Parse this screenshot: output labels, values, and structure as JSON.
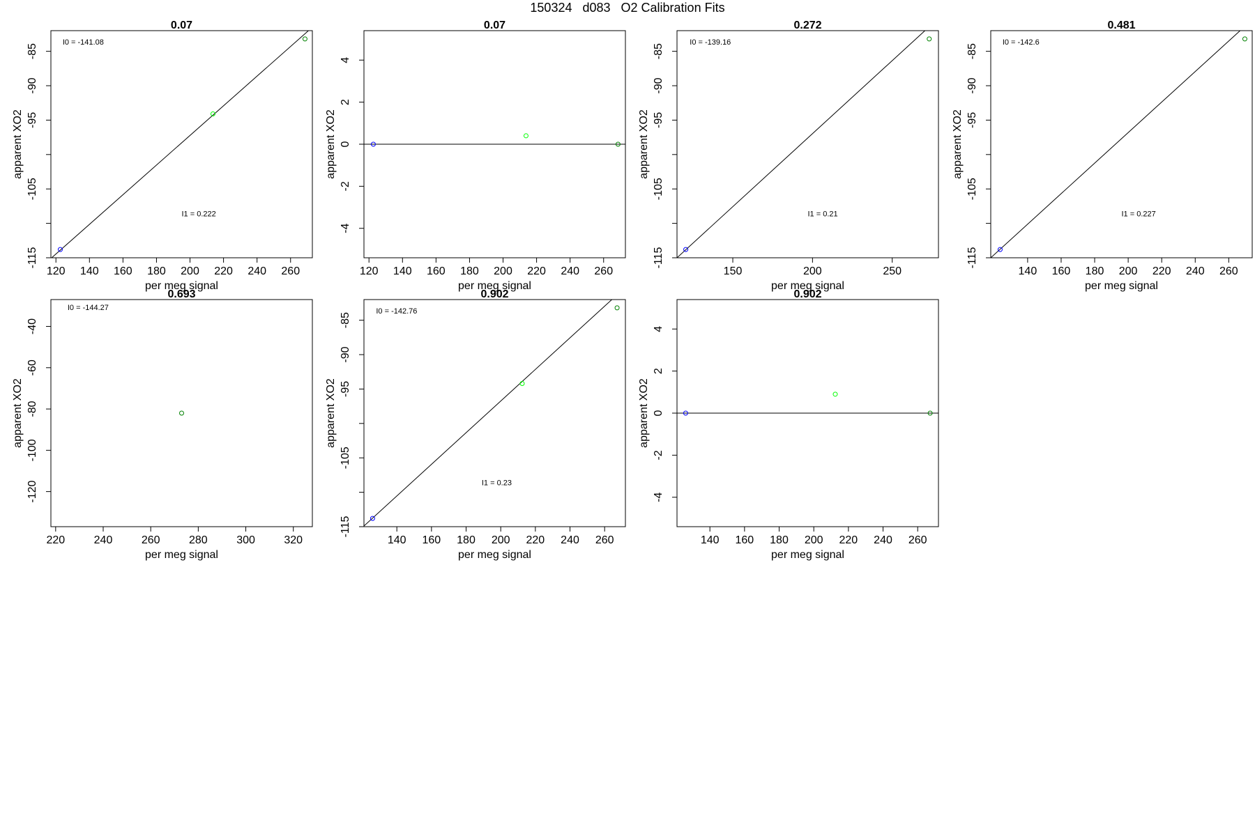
{
  "page_title": "150324   d083   O2 Calibration Fits",
  "colors": {
    "low_std": "#0000ff",
    "mid_std": "#00ff00",
    "high_std": "#008000",
    "fit_line": "#000000"
  },
  "chart_data": [
    {
      "type": "scatter",
      "title": "0.07",
      "xlabel": "per meg signal",
      "ylabel": "apparent XO2",
      "xlim": [
        117,
        273
      ],
      "ylim": [
        -115,
        -82
      ],
      "xticks": [
        120,
        140,
        160,
        180,
        200,
        220,
        240,
        260
      ],
      "yticks": [
        -115,
        -110,
        -105,
        -100,
        -95,
        -90,
        -85
      ],
      "yticklabels": [
        "-115",
        "",
        "-105",
        "",
        "-95",
        "-90",
        "-85"
      ],
      "points": [
        {
          "x": 122.6,
          "y": -113.8,
          "color": "#0000ff"
        },
        {
          "x": 213.7,
          "y": -94.1,
          "color": "#00ff00"
        },
        {
          "x": 268.6,
          "y": -83.2,
          "color": "#008000"
        }
      ],
      "fit": {
        "type": "line",
        "x": [
          117,
          273
        ],
        "y": [
          -115.1,
          -81.5
        ]
      },
      "annotations": [
        {
          "text": "I0 =  -141.08",
          "x": 124,
          "y": -84.0
        },
        {
          "text": "I1 =  0.222",
          "x": 195,
          "y": -109.0
        }
      ]
    },
    {
      "type": "scatter",
      "title": "0.07",
      "xlabel": "per meg signal",
      "ylabel": "apparent XO2",
      "xlim": [
        117,
        273
      ],
      "ylim": [
        -5.4,
        5.4
      ],
      "xticks": [
        120,
        140,
        160,
        180,
        200,
        220,
        240,
        260
      ],
      "yticks": [
        -4,
        -2,
        0,
        2,
        4
      ],
      "yticklabels": [
        "-4",
        "-2",
        "0",
        "2",
        "4"
      ],
      "points": [
        {
          "x": 122.6,
          "y": 0,
          "color": "#0000ff"
        },
        {
          "x": 213.7,
          "y": 0.4,
          "color": "#00ff00"
        },
        {
          "x": 268.6,
          "y": 0,
          "color": "#008000"
        }
      ],
      "fit": {
        "type": "line",
        "x": [
          117,
          273
        ],
        "y": [
          0,
          0
        ]
      },
      "annotations": []
    },
    {
      "type": "scatter",
      "title": "0.272",
      "xlabel": "per meg signal",
      "ylabel": "apparent XO2",
      "xlim": [
        115,
        279
      ],
      "ylim": [
        -115,
        -82
      ],
      "xticks": [
        150,
        200,
        250
      ],
      "yticks": [
        -115,
        -110,
        -105,
        -100,
        -95,
        -90,
        -85
      ],
      "yticklabels": [
        "-115",
        "",
        "-105",
        "",
        "-95",
        "-90",
        "-85"
      ],
      "points": [
        {
          "x": 120.5,
          "y": -113.8,
          "color": "#0000ff"
        },
        {
          "x": 273.2,
          "y": -83.2,
          "color": "#008000"
        }
      ],
      "fit": {
        "type": "line",
        "x": [
          115,
          279
        ],
        "y": [
          -115.0,
          -80.2
        ]
      },
      "annotations": [
        {
          "text": "I0 =  -139.16",
          "x": 123,
          "y": -84.0
        },
        {
          "text": "I1 =  0.21",
          "x": 197,
          "y": -109.0
        }
      ]
    },
    {
      "type": "scatter",
      "title": "0.481",
      "xlabel": "per meg signal",
      "ylabel": "apparent XO2",
      "xlim": [
        118,
        274
      ],
      "ylim": [
        -115,
        -82
      ],
      "xticks": [
        140,
        160,
        180,
        200,
        220,
        240,
        260
      ],
      "yticks": [
        -115,
        -110,
        -105,
        -100,
        -95,
        -90,
        -85
      ],
      "yticklabels": [
        "-115",
        "",
        "-105",
        "",
        "-95",
        "-90",
        "-85"
      ],
      "points": [
        {
          "x": 123.6,
          "y": -113.8,
          "color": "#0000ff"
        },
        {
          "x": 269.6,
          "y": -83.2,
          "color": "#008000"
        }
      ],
      "fit": {
        "type": "line",
        "x": [
          118,
          274
        ],
        "y": [
          -115.0,
          -80.4
        ]
      },
      "annotations": [
        {
          "text": "I0 =  -142.6",
          "x": 125,
          "y": -84.0
        },
        {
          "text": "I1 =  0.227",
          "x": 196,
          "y": -109.0
        }
      ]
    },
    {
      "type": "scatter",
      "title": "0.693",
      "xlabel": "per meg signal",
      "ylabel": "apparent XO2",
      "xlim": [
        218,
        328
      ],
      "ylim": [
        -137,
        -27
      ],
      "xticks": [
        220,
        240,
        260,
        280,
        300,
        320
      ],
      "yticks": [
        -120,
        -100,
        -80,
        -60,
        -40
      ],
      "yticklabels": [
        "-120",
        "-100",
        "-80",
        "-60",
        "-40"
      ],
      "points": [
        {
          "x": 273,
          "y": -82,
          "color": "#008000"
        }
      ],
      "annotations": [
        {
          "text": "I0 =  -144.27",
          "x": 225,
          "y": -32.0
        }
      ]
    },
    {
      "type": "scatter",
      "title": "0.902",
      "xlabel": "per meg signal",
      "ylabel": "apparent XO2",
      "xlim": [
        121,
        272
      ],
      "ylim": [
        -115,
        -82
      ],
      "xticks": [
        140,
        160,
        180,
        200,
        220,
        240,
        260
      ],
      "yticks": [
        -115,
        -110,
        -105,
        -100,
        -95,
        -90,
        -85
      ],
      "yticklabels": [
        "-115",
        "",
        "-105",
        "",
        "-95",
        "-90",
        "-85"
      ],
      "points": [
        {
          "x": 126.0,
          "y": -113.8,
          "color": "#0000ff"
        },
        {
          "x": 212.4,
          "y": -94.2,
          "color": "#00ff00"
        },
        {
          "x": 267.2,
          "y": -83.2,
          "color": "#008000"
        }
      ],
      "fit": {
        "type": "line",
        "x": [
          121,
          272
        ],
        "y": [
          -114.9,
          -80.2
        ]
      },
      "annotations": [
        {
          "text": "I0 =  -142.76",
          "x": 128,
          "y": -84.0
        },
        {
          "text": "I1 =  0.23",
          "x": 189,
          "y": -109.0
        }
      ]
    },
    {
      "type": "scatter",
      "title": "0.902",
      "xlabel": "per meg signal",
      "ylabel": "apparent XO2",
      "xlim": [
        121,
        272
      ],
      "ylim": [
        -5.4,
        5.4
      ],
      "xticks": [
        140,
        160,
        180,
        200,
        220,
        240,
        260
      ],
      "yticks": [
        -4,
        -2,
        0,
        2,
        4
      ],
      "yticklabels": [
        "-4",
        "-2",
        "0",
        "2",
        "4"
      ],
      "points": [
        {
          "x": 126.0,
          "y": 0,
          "color": "#0000ff"
        },
        {
          "x": 212.4,
          "y": 0.9,
          "color": "#00ff00"
        },
        {
          "x": 267.2,
          "y": 0,
          "color": "#008000"
        }
      ],
      "fit": {
        "type": "line",
        "x": [
          121,
          272
        ],
        "y": [
          0,
          0
        ]
      },
      "annotations": []
    }
  ]
}
